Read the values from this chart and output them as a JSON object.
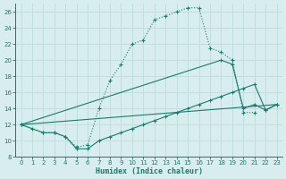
{
  "xlabel": "Humidex (Indice chaleur)",
  "bg_color": "#d8eeee",
  "grid_color": "#c0dede",
  "line_color": "#1a7a6e",
  "xlim": [
    -0.5,
    23.5
  ],
  "ylim": [
    8,
    27
  ],
  "xticks": [
    0,
    1,
    2,
    3,
    4,
    5,
    6,
    7,
    8,
    9,
    10,
    11,
    12,
    13,
    14,
    15,
    16,
    17,
    18,
    19,
    20,
    21,
    22,
    23
  ],
  "yticks": [
    8,
    10,
    12,
    14,
    16,
    18,
    20,
    22,
    24,
    26
  ],
  "line1_x": [
    0,
    1,
    2,
    3,
    4,
    5,
    6,
    7,
    8,
    9,
    10,
    11,
    12,
    13,
    14,
    15,
    16,
    17,
    18,
    19,
    20,
    21
  ],
  "line1_y": [
    12,
    11.5,
    11,
    11,
    10.5,
    9.2,
    9.5,
    14,
    17.5,
    19.5,
    22,
    22.5,
    25,
    25.5,
    26,
    26.5,
    26.5,
    21.5,
    21,
    20,
    13.5,
    13.5
  ],
  "line2_x": [
    0,
    18,
    19,
    20,
    21,
    22,
    23
  ],
  "line2_y": [
    12,
    20,
    19.5,
    14,
    14.5,
    13.8,
    14.5
  ],
  "line3_x": [
    0,
    23
  ],
  "line3_y": [
    12,
    14.5
  ],
  "line4_x": [
    0,
    2,
    3,
    4,
    5,
    6,
    7,
    8,
    9,
    10,
    11,
    12,
    13,
    14,
    15,
    16,
    17,
    18,
    19,
    20,
    21,
    22,
    23
  ],
  "line4_y": [
    12,
    11,
    11,
    10.5,
    9.0,
    9.0,
    10,
    10.5,
    11,
    11.5,
    12,
    12.5,
    13,
    13.5,
    14,
    14.5,
    15,
    15.5,
    16,
    16.5,
    17,
    13.8,
    14.5
  ]
}
